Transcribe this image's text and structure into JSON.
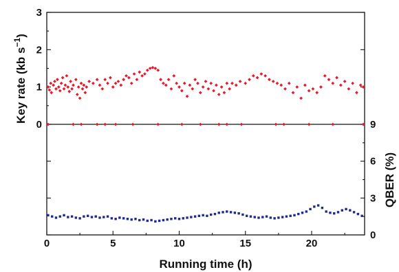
{
  "chart_data": {
    "type": "scatter",
    "xlabel": "Running time (h)",
    "x_ticks": [
      "0",
      "5",
      "10",
      "15",
      "20"
    ],
    "xlim": [
      0,
      24
    ],
    "panels": [
      {
        "id": "key-rate",
        "ylabel_main": "Key rate (kb s",
        "ylabel_sup": "−1",
        "ylabel_close": ")",
        "y_ticks": [
          "0",
          "1",
          "2",
          "3"
        ],
        "ylim": [
          0,
          3
        ],
        "color": "#e8192c",
        "marker": "diamond"
      },
      {
        "id": "qber",
        "ylabel": "QBER (%)",
        "y_ticks": [
          "0",
          "3",
          "6",
          "9"
        ],
        "ylim": [
          0,
          9
        ],
        "color": "#1f2b8c",
        "marker": "square"
      }
    ],
    "series": [
      {
        "name": "",
        "panel": "key-rate",
        "points": [
          [
            0.1,
            1.0
          ],
          [
            0.2,
            0.92
          ],
          [
            0.3,
            1.1
          ],
          [
            0.35,
            0.85
          ],
          [
            0.5,
            1.05
          ],
          [
            0.6,
            1.15
          ],
          [
            0.7,
            0.95
          ],
          [
            0.8,
            1.2
          ],
          [
            0.9,
            1.0
          ],
          [
            1.0,
            0.9
          ],
          [
            1.1,
            1.1
          ],
          [
            1.2,
            1.25
          ],
          [
            1.3,
            0.95
          ],
          [
            1.4,
            1.05
          ],
          [
            1.5,
            1.3
          ],
          [
            1.6,
            1.0
          ],
          [
            1.7,
            0.88
          ],
          [
            1.8,
            1.15
          ],
          [
            1.9,
            0.95
          ],
          [
            2.0,
            1.05
          ],
          [
            2.2,
            1.2
          ],
          [
            2.3,
            0.8
          ],
          [
            2.4,
            1.0
          ],
          [
            2.5,
            0.7
          ],
          [
            2.6,
            1.1
          ],
          [
            2.7,
            0.95
          ],
          [
            2.8,
            1.05
          ],
          [
            2.9,
            0.85
          ],
          [
            3.0,
            1.0
          ],
          [
            3.2,
            1.15
          ],
          [
            3.5,
            1.1
          ],
          [
            3.8,
            1.2
          ],
          [
            4.0,
            1.05
          ],
          [
            4.2,
            0.95
          ],
          [
            4.4,
            1.2
          ],
          [
            4.6,
            1.1
          ],
          [
            4.8,
            1.25
          ],
          [
            5.0,
            1.0
          ],
          [
            5.2,
            1.1
          ],
          [
            5.4,
            1.15
          ],
          [
            5.6,
            1.05
          ],
          [
            5.8,
            1.2
          ],
          [
            6.0,
            1.3
          ],
          [
            6.2,
            1.25
          ],
          [
            6.4,
            1.1
          ],
          [
            6.6,
            1.35
          ],
          [
            6.8,
            1.2
          ],
          [
            7.0,
            1.4
          ],
          [
            7.2,
            1.3
          ],
          [
            7.4,
            1.35
          ],
          [
            7.6,
            1.45
          ],
          [
            7.8,
            1.5
          ],
          [
            8.0,
            1.52
          ],
          [
            8.2,
            1.5
          ],
          [
            8.4,
            1.45
          ],
          [
            8.6,
            1.2
          ],
          [
            8.8,
            1.1
          ],
          [
            9.0,
            1.05
          ],
          [
            9.2,
            1.2
          ],
          [
            9.4,
            0.95
          ],
          [
            9.6,
            1.3
          ],
          [
            9.8,
            1.1
          ],
          [
            10.0,
            1.0
          ],
          [
            10.2,
            0.9
          ],
          [
            10.4,
            1.1
          ],
          [
            10.6,
            0.75
          ],
          [
            10.8,
            1.05
          ],
          [
            11.0,
            0.95
          ],
          [
            11.2,
            1.2
          ],
          [
            11.4,
            1.1
          ],
          [
            11.6,
            0.85
          ],
          [
            11.8,
            1.0
          ],
          [
            12.0,
            1.15
          ],
          [
            12.2,
            0.95
          ],
          [
            12.4,
            1.1
          ],
          [
            12.6,
            0.9
          ],
          [
            12.8,
            1.05
          ],
          [
            13.0,
            0.8
          ],
          [
            13.2,
            1.0
          ],
          [
            13.4,
            0.85
          ],
          [
            13.6,
            1.1
          ],
          [
            13.8,
            0.95
          ],
          [
            14.0,
            1.1
          ],
          [
            14.3,
            1.05
          ],
          [
            14.6,
            1.15
          ],
          [
            15.0,
            1.1
          ],
          [
            15.3,
            1.2
          ],
          [
            15.6,
            1.3
          ],
          [
            15.9,
            1.25
          ],
          [
            16.2,
            1.35
          ],
          [
            16.5,
            1.3
          ],
          [
            16.8,
            1.2
          ],
          [
            17.1,
            1.15
          ],
          [
            17.4,
            1.1
          ],
          [
            17.7,
            1.05
          ],
          [
            18.0,
            0.95
          ],
          [
            18.3,
            1.1
          ],
          [
            18.6,
            0.85
          ],
          [
            18.9,
            1.0
          ],
          [
            19.2,
            0.7
          ],
          [
            19.5,
            1.05
          ],
          [
            19.8,
            0.9
          ],
          [
            20.1,
            0.95
          ],
          [
            20.4,
            0.85
          ],
          [
            20.7,
            1.0
          ],
          [
            21.0,
            1.3
          ],
          [
            21.3,
            1.2
          ],
          [
            21.6,
            1.1
          ],
          [
            21.9,
            1.25
          ],
          [
            22.2,
            1.05
          ],
          [
            22.5,
            1.15
          ],
          [
            22.8,
            0.95
          ],
          [
            23.1,
            1.1
          ],
          [
            23.4,
            0.85
          ],
          [
            23.7,
            1.05
          ],
          [
            23.9,
            1.0
          ]
        ]
      },
      {
        "name": "",
        "panel": "key-rate",
        "points": [
          [
            0.1,
            0
          ],
          [
            2.0,
            0
          ],
          [
            2.6,
            0
          ],
          [
            3.8,
            0
          ],
          [
            4.4,
            0
          ],
          [
            5.2,
            0
          ],
          [
            6.5,
            0
          ],
          [
            8.4,
            0
          ],
          [
            10.2,
            0
          ],
          [
            11.6,
            0
          ],
          [
            13.0,
            0
          ],
          [
            13.6,
            0
          ],
          [
            14.7,
            0
          ],
          [
            17.3,
            0
          ],
          [
            17.9,
            0
          ],
          [
            19.8,
            0
          ],
          [
            21.6,
            0
          ],
          [
            23.9,
            0
          ]
        ]
      },
      {
        "name": "",
        "panel": "qber",
        "points": [
          [
            0.1,
            1.6
          ],
          [
            0.4,
            1.5
          ],
          [
            0.7,
            1.4
          ],
          [
            1.0,
            1.5
          ],
          [
            1.3,
            1.6
          ],
          [
            1.6,
            1.45
          ],
          [
            1.9,
            1.5
          ],
          [
            2.2,
            1.4
          ],
          [
            2.5,
            1.35
          ],
          [
            2.8,
            1.5
          ],
          [
            3.1,
            1.55
          ],
          [
            3.4,
            1.45
          ],
          [
            3.7,
            1.5
          ],
          [
            4.0,
            1.4
          ],
          [
            4.3,
            1.45
          ],
          [
            4.6,
            1.5
          ],
          [
            4.9,
            1.35
          ],
          [
            5.2,
            1.3
          ],
          [
            5.5,
            1.4
          ],
          [
            5.8,
            1.35
          ],
          [
            6.1,
            1.3
          ],
          [
            6.4,
            1.25
          ],
          [
            6.7,
            1.3
          ],
          [
            7.0,
            1.2
          ],
          [
            7.3,
            1.25
          ],
          [
            7.6,
            1.15
          ],
          [
            7.9,
            1.2
          ],
          [
            8.2,
            1.1
          ],
          [
            8.5,
            1.15
          ],
          [
            8.8,
            1.2
          ],
          [
            9.1,
            1.25
          ],
          [
            9.4,
            1.3
          ],
          [
            9.7,
            1.35
          ],
          [
            10.0,
            1.3
          ],
          [
            10.3,
            1.35
          ],
          [
            10.6,
            1.4
          ],
          [
            10.9,
            1.45
          ],
          [
            11.2,
            1.5
          ],
          [
            11.5,
            1.55
          ],
          [
            11.8,
            1.6
          ],
          [
            12.1,
            1.55
          ],
          [
            12.4,
            1.65
          ],
          [
            12.7,
            1.7
          ],
          [
            13.0,
            1.8
          ],
          [
            13.3,
            1.85
          ],
          [
            13.6,
            1.9
          ],
          [
            13.9,
            1.85
          ],
          [
            14.2,
            1.8
          ],
          [
            14.5,
            1.75
          ],
          [
            14.8,
            1.65
          ],
          [
            15.1,
            1.55
          ],
          [
            15.4,
            1.5
          ],
          [
            15.7,
            1.45
          ],
          [
            16.0,
            1.4
          ],
          [
            16.3,
            1.45
          ],
          [
            16.6,
            1.5
          ],
          [
            16.9,
            1.4
          ],
          [
            17.2,
            1.35
          ],
          [
            17.5,
            1.4
          ],
          [
            17.8,
            1.45
          ],
          [
            18.1,
            1.5
          ],
          [
            18.4,
            1.55
          ],
          [
            18.7,
            1.6
          ],
          [
            19.0,
            1.7
          ],
          [
            19.3,
            1.8
          ],
          [
            19.6,
            1.9
          ],
          [
            19.9,
            2.1
          ],
          [
            20.2,
            2.3
          ],
          [
            20.5,
            2.4
          ],
          [
            20.8,
            2.2
          ],
          [
            21.1,
            1.9
          ],
          [
            21.4,
            1.8
          ],
          [
            21.7,
            1.75
          ],
          [
            22.0,
            1.85
          ],
          [
            22.3,
            2.0
          ],
          [
            22.6,
            2.1
          ],
          [
            22.9,
            2.0
          ],
          [
            23.2,
            1.85
          ],
          [
            23.5,
            1.7
          ],
          [
            23.8,
            1.55
          ]
        ]
      }
    ]
  }
}
